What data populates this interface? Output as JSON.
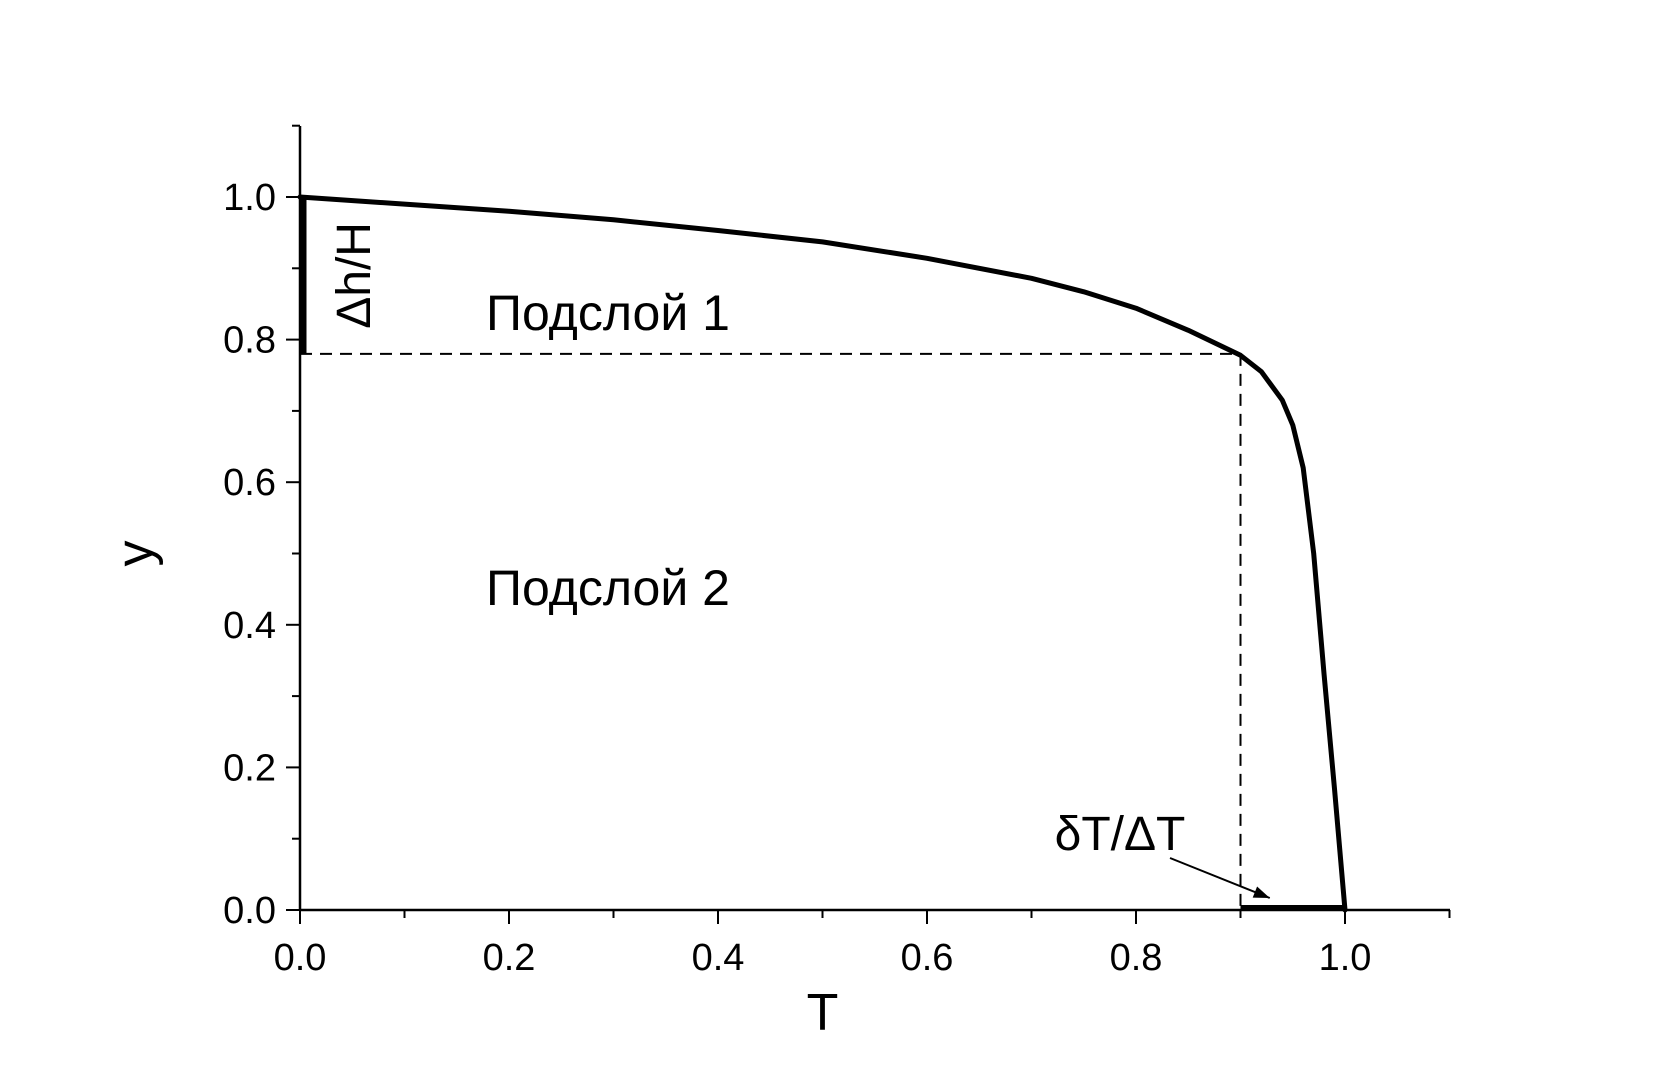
{
  "chart_data": {
    "type": "line",
    "xlabel": "T",
    "ylabel": "y",
    "xlim": [
      0.0,
      1.1
    ],
    "ylim": [
      0.0,
      1.1
    ],
    "x_ticks": [
      "0.0",
      "0.2",
      "0.4",
      "0.6",
      "0.8",
      "1.0"
    ],
    "y_ticks": [
      "0.0",
      "0.2",
      "0.4",
      "0.6",
      "0.8",
      "1.0"
    ],
    "grid": false,
    "series": [
      {
        "x": [
          0.0,
          0.1,
          0.2,
          0.3,
          0.4,
          0.5,
          0.6,
          0.7,
          0.75,
          0.8,
          0.85,
          0.88,
          0.9,
          0.92,
          0.94,
          0.95,
          0.96,
          0.97,
          0.98,
          0.99,
          1.0
        ],
        "y": [
          1.0,
          0.99,
          0.98,
          0.968,
          0.953,
          0.937,
          0.914,
          0.886,
          0.867,
          0.844,
          0.813,
          0.792,
          0.778,
          0.755,
          0.715,
          0.68,
          0.62,
          0.5,
          0.33,
          0.17,
          0.0
        ]
      }
    ],
    "annotations": {
      "region1": "Подслой 1",
      "region2": "Подслой 2",
      "dh_label": "Δh/H",
      "dt_label": "δT/ΔT"
    },
    "reference_lines": {
      "y_level": 0.78,
      "x_level": 0.9
    },
    "thick_segments": {
      "y_axis_segment": [
        0.78,
        1.0
      ],
      "x_axis_segment": [
        0.9,
        1.0
      ]
    }
  }
}
